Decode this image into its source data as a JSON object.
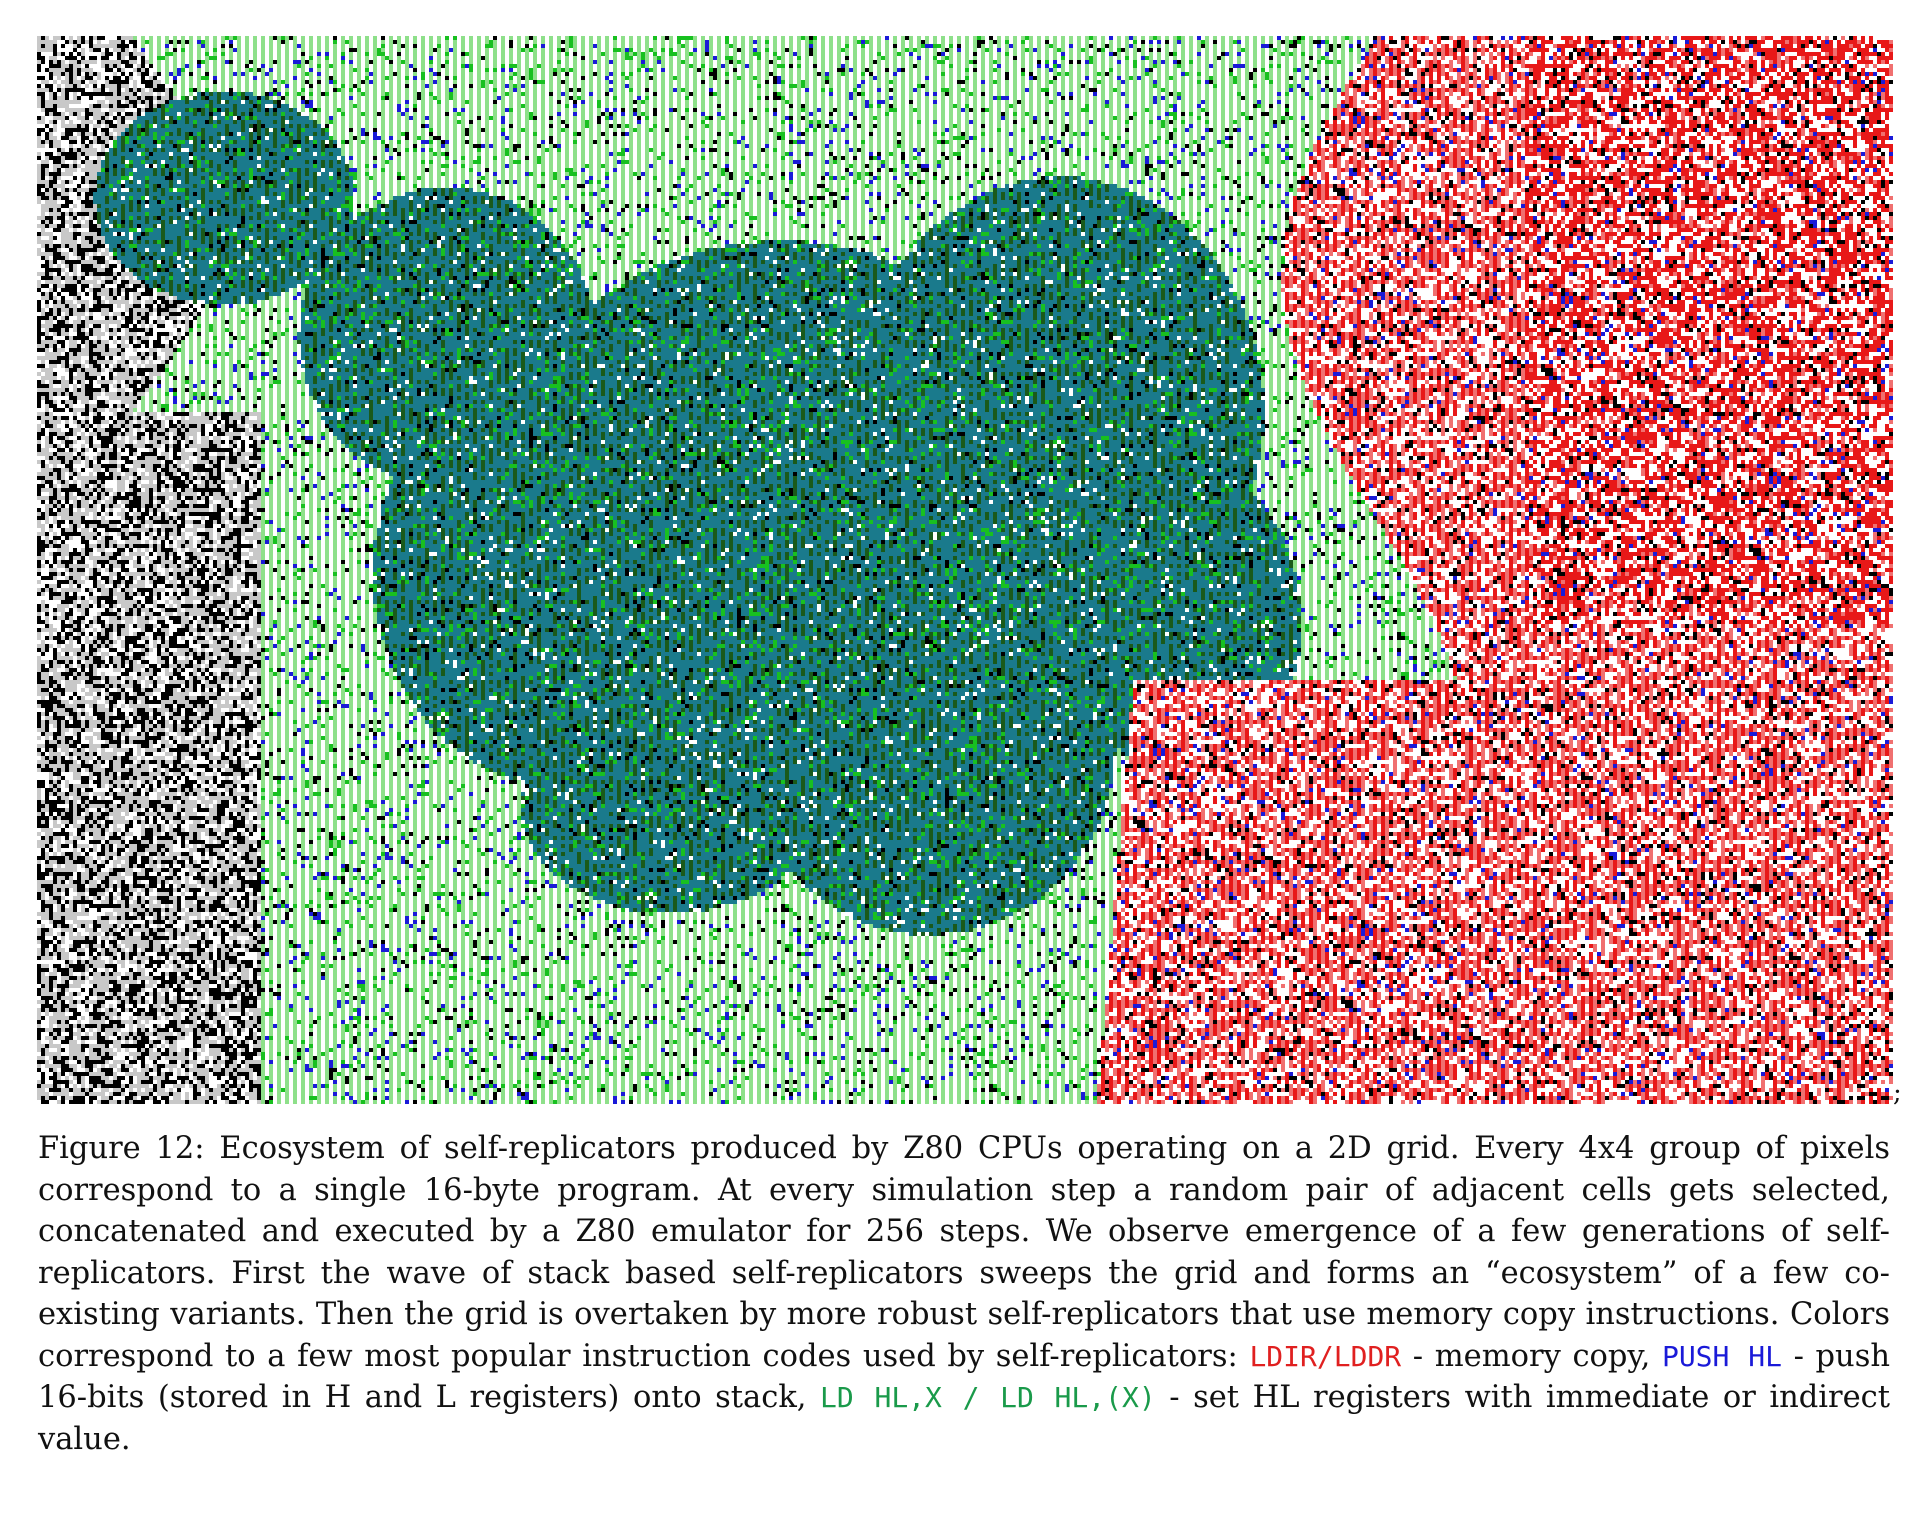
{
  "figure": {
    "trailing_mark": ";",
    "palette": {
      "teal": "#1a7a8c",
      "light_green": "#8ee08a",
      "green": "#18c020",
      "dark_green": "#1a5a1a",
      "red": "#e81818",
      "light_red": "#f07070",
      "blue": "#1a1ad8",
      "black": "#000000",
      "white": "#ffffff",
      "gray": "#c8c8c8"
    }
  },
  "caption": {
    "part1": "Figure 12: Ecosystem of self-replicators produced by Z80 CPUs operating on a 2D grid. Every 4x4 group of pixels correspond to a single 16-byte program. At every simulation step a random pair of adjacent cells gets selected, concatenated and executed by a Z80 emulator for 256 steps. We observe emergence of a few generations of self-replicators. First the wave of stack based self-replicators sweeps the grid and forms an “ecosystem” of a few co-existing variants. Then the grid is overtaken by more robust self-replicators that use memory copy instructions. Colors correspond to a few most popular instruction codes used by self-replicators: ",
    "code_red": "LDIR/LDDR",
    "part2": " - memory copy, ",
    "code_blue": "PUSH HL",
    "part3": " - push 16-bits (stored in H and L registers) onto stack, ",
    "code_green": "LD HL,X / LD HL,(X)",
    "part4": " - set HL registers with immediate or indirect value."
  }
}
